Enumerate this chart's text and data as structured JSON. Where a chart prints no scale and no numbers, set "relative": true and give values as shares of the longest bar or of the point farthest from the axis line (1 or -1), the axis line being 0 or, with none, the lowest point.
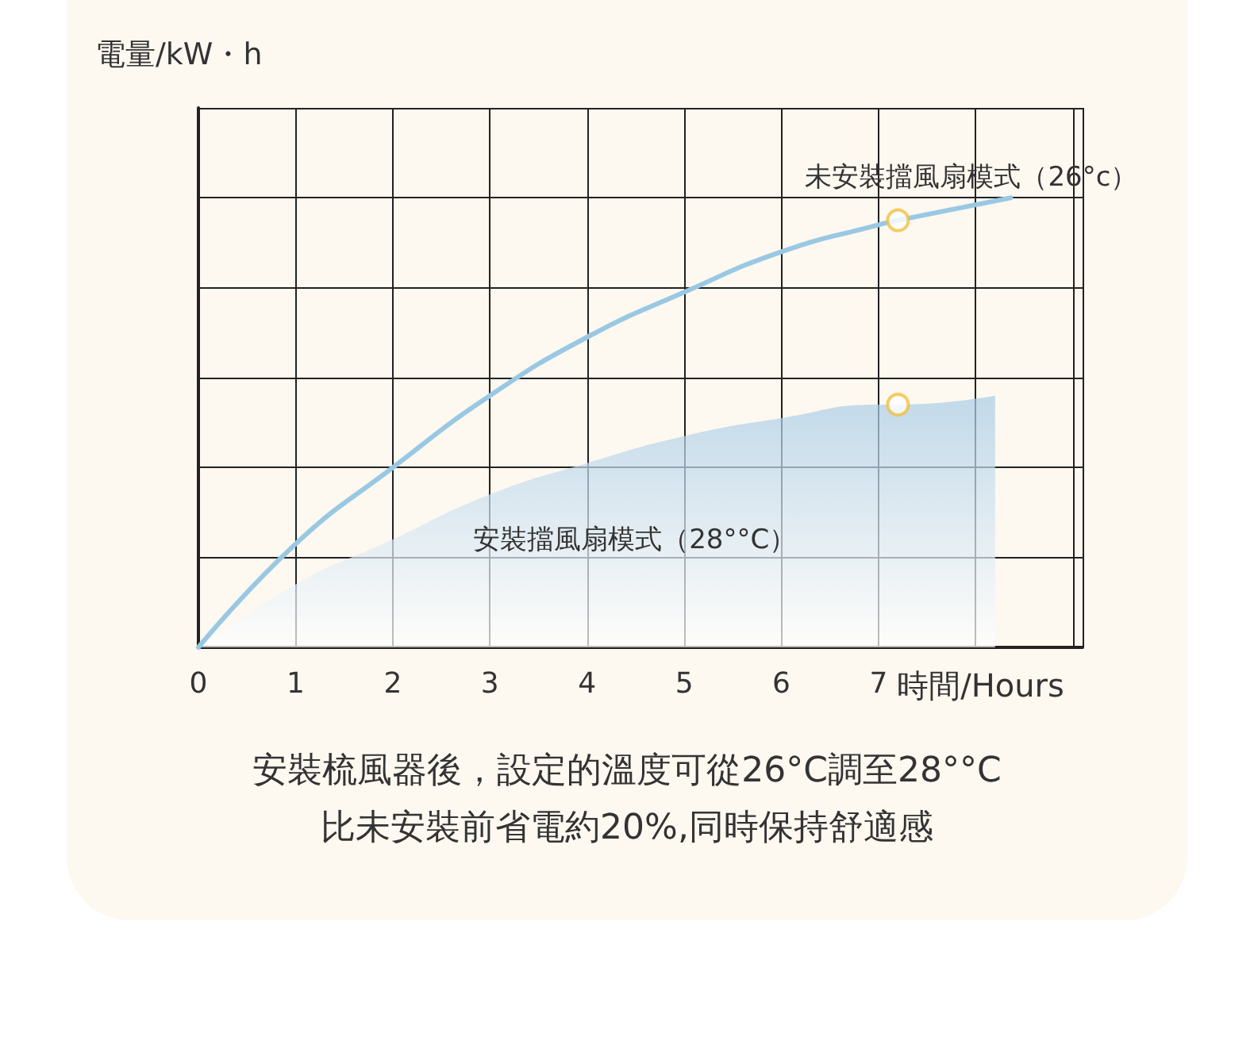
{
  "chart_data": {
    "type": "line",
    "relative": true,
    "ylabel": "電量/kW・h",
    "xlabel": "時間/Hours",
    "xlim": [
      0,
      9.1
    ],
    "xticks": [
      0,
      1,
      2,
      3,
      4,
      5,
      6,
      7
    ],
    "grid": true,
    "legend": false,
    "series": [
      {
        "name": "未安裝擋風扇模式（26°c）",
        "type": "line",
        "color": "#99c8e3",
        "x": [
          0,
          1,
          2,
          3,
          4,
          5,
          6,
          7,
          7.2,
          8.36
        ],
        "values": [
          0,
          0.23,
          0.4,
          0.56,
          0.69,
          0.79,
          0.88,
          0.94,
          0.95,
          1
        ]
      },
      {
        "name": "安裝擋風扇模式（28°°C）",
        "type": "area",
        "color": "#a8cce6",
        "x": [
          0,
          1,
          2,
          3,
          4,
          5,
          6,
          7,
          7.2,
          8.2
        ],
        "values": [
          0,
          0.14,
          0.24,
          0.34,
          0.41,
          0.47,
          0.51,
          0.54,
          0.54,
          0.56
        ]
      },
      {
        "type": "scatter",
        "color": "#f0c040",
        "marker": "circle",
        "x": [
          7.2,
          7.2
        ],
        "values": [
          0.95,
          0.54
        ]
      }
    ],
    "annotations": [
      "安裝梳風器後，設定的溫度可從26°C調至28°°C",
      "比未安裝前省電約20%,同時保持舒適感"
    ]
  }
}
